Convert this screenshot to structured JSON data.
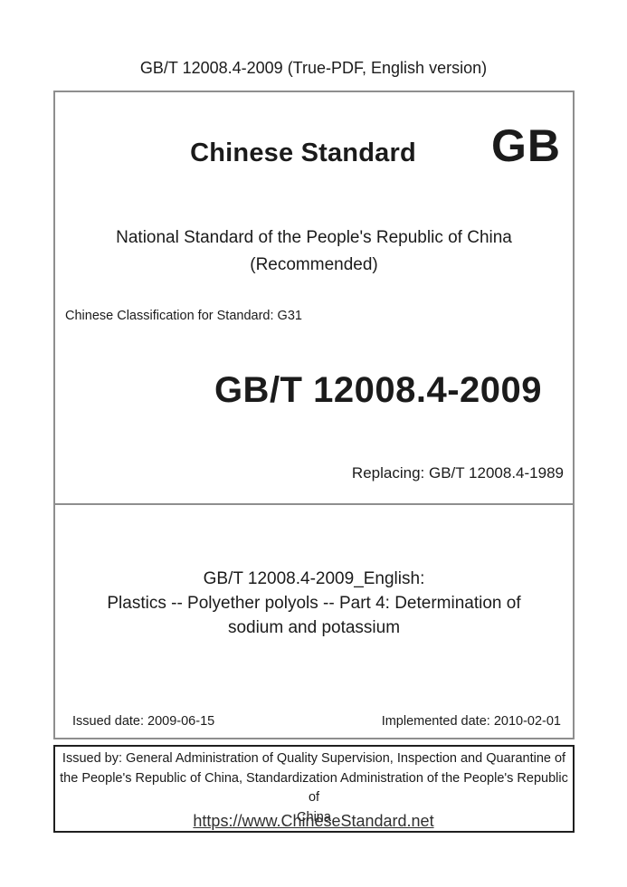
{
  "header": {
    "title": "GB/T 12008.4-2009 (True-PDF, English version)"
  },
  "cover": {
    "brand": "Chinese Standard",
    "logo": "GB",
    "national_title": "National Standard of the People's Republic of China",
    "recommended": "(Recommended)",
    "classification": "Chinese Classification for Standard: G31",
    "standard_number": "GB/T 12008.4-2009",
    "replacing": "Replacing: GB/T 12008.4-1989",
    "english_heading": "GB/T 12008.4-2009_English:",
    "english_title": "Plastics -- Polyether polyols -- Part 4: Determination of sodium and potassium",
    "issued_date": "Issued date: 2009-06-15",
    "implemented_date": "Implemented date: 2010-02-01"
  },
  "issuer": {
    "lines": [
      "Issued by: General Administration of Quality Supervision, Inspection and Quarantine of",
      "the People's Republic of China, Standardization Administration of the People's Republic of",
      "China"
    ]
  },
  "footer": {
    "link": "https://www.ChineseStandard.net"
  },
  "colors": {
    "border_gray": "#8e8e8e",
    "border_black": "#1f1f1f",
    "text": "#1b1b1b",
    "link": "#2f2f2f"
  }
}
